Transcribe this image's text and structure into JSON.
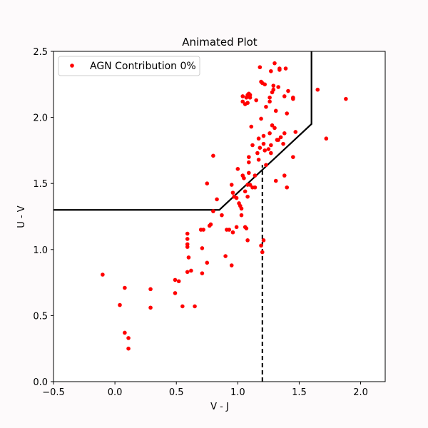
{
  "chart_data": {
    "type": "scatter",
    "title": "Animated Plot",
    "xlabel": "V - J",
    "ylabel": "U - V",
    "xlim": [
      -0.5,
      2.2
    ],
    "ylim": [
      0.0,
      2.5
    ],
    "xticks": [
      -0.5,
      0.0,
      0.5,
      1.0,
      1.5,
      2.0
    ],
    "yticks": [
      0.0,
      0.5,
      1.0,
      1.5,
      2.0,
      2.5
    ],
    "xtick_labels": [
      "−0.5",
      "0.0",
      "0.5",
      "1.0",
      "1.5",
      "2.0"
    ],
    "ytick_labels": [
      "0.0",
      "0.5",
      "1.0",
      "1.5",
      "2.0",
      "2.5"
    ],
    "grid": false,
    "legend": {
      "position": "top-left",
      "entries": [
        "AGN Contribution 0%"
      ]
    },
    "point_color": "#ff0000",
    "series": [
      {
        "name": "AGN Contribution 0%",
        "points": [
          [
            -0.1,
            0.81
          ],
          [
            0.04,
            0.58
          ],
          [
            0.08,
            0.71
          ],
          [
            0.08,
            0.37
          ],
          [
            0.11,
            0.33
          ],
          [
            0.11,
            0.25
          ],
          [
            0.29,
            0.7
          ],
          [
            0.29,
            0.56
          ],
          [
            0.49,
            0.67
          ],
          [
            0.49,
            0.77
          ],
          [
            0.52,
            0.76
          ],
          [
            0.55,
            0.57
          ],
          [
            0.59,
            1.12
          ],
          [
            0.59,
            1.08
          ],
          [
            0.59,
            1.04
          ],
          [
            0.59,
            1.02
          ],
          [
            0.6,
            0.94
          ],
          [
            0.59,
            0.83
          ],
          [
            0.62,
            0.84
          ],
          [
            0.65,
            0.57
          ],
          [
            0.7,
            1.15
          ],
          [
            0.72,
            1.15
          ],
          [
            0.71,
            1.01
          ],
          [
            0.71,
            0.82
          ],
          [
            0.75,
            0.9
          ],
          [
            0.77,
            1.18
          ],
          [
            0.78,
            1.19
          ],
          [
            0.8,
            1.29
          ],
          [
            0.83,
            1.38
          ],
          [
            0.75,
            1.5
          ],
          [
            0.8,
            1.71
          ],
          [
            0.87,
            1.26
          ],
          [
            0.91,
            1.15
          ],
          [
            0.9,
            0.95
          ],
          [
            0.95,
            0.88
          ],
          [
            0.93,
            1.15
          ],
          [
            0.96,
            1.13
          ],
          [
            0.95,
            1.49
          ],
          [
            0.96,
            1.43
          ],
          [
            0.97,
            1.4
          ],
          [
            0.99,
            1.39
          ],
          [
            0.99,
            1.17
          ],
          [
            1.0,
            1.61
          ],
          [
            1.02,
            1.33
          ],
          [
            1.01,
            1.35
          ],
          [
            1.03,
            1.31
          ],
          [
            1.03,
            1.26
          ],
          [
            1.04,
            1.56
          ],
          [
            1.05,
            1.54
          ],
          [
            1.06,
            1.44
          ],
          [
            1.06,
            1.17
          ],
          [
            1.07,
            1.16
          ],
          [
            1.08,
            1.07
          ],
          [
            1.08,
            1.4
          ],
          [
            1.08,
            1.49
          ],
          [
            1.09,
            1.58
          ],
          [
            1.09,
            1.66
          ],
          [
            1.09,
            1.7
          ],
          [
            1.1,
            1.49
          ],
          [
            1.11,
            1.93
          ],
          [
            1.12,
            1.47
          ],
          [
            1.12,
            1.79
          ],
          [
            1.14,
            1.56
          ],
          [
            1.14,
            1.47
          ],
          [
            1.16,
            1.73
          ],
          [
            1.17,
            1.68
          ],
          [
            1.17,
            1.84
          ],
          [
            1.18,
            1.77
          ],
          [
            1.19,
            1.99
          ],
          [
            1.19,
            1.03
          ],
          [
            1.2,
            0.98
          ],
          [
            1.21,
            1.07
          ],
          [
            1.21,
            1.8
          ],
          [
            1.21,
            1.86
          ],
          [
            1.22,
            1.75
          ],
          [
            1.23,
            1.64
          ],
          [
            1.25,
            1.76
          ],
          [
            1.26,
            1.88
          ],
          [
            1.27,
            1.73
          ],
          [
            1.27,
            1.79
          ],
          [
            1.28,
            1.94
          ],
          [
            1.3,
            1.92
          ],
          [
            1.31,
            1.52
          ],
          [
            1.32,
            1.83
          ],
          [
            1.33,
            1.83
          ],
          [
            1.35,
            1.85
          ],
          [
            1.37,
            1.8
          ],
          [
            1.38,
            1.56
          ],
          [
            1.38,
            1.88
          ],
          [
            1.4,
            2.03
          ],
          [
            1.4,
            1.47
          ],
          [
            1.45,
            1.7
          ],
          [
            1.47,
            1.89
          ],
          [
            1.04,
            2.16
          ],
          [
            1.04,
            2.12
          ],
          [
            1.06,
            2.1
          ],
          [
            1.07,
            2.15
          ],
          [
            1.08,
            2.17
          ],
          [
            1.08,
            2.11
          ],
          [
            1.09,
            2.18
          ],
          [
            1.1,
            2.17
          ],
          [
            1.1,
            2.15
          ],
          [
            1.15,
            2.13
          ],
          [
            1.18,
            2.38
          ],
          [
            1.19,
            2.27
          ],
          [
            1.2,
            2.26
          ],
          [
            1.22,
            2.25
          ],
          [
            1.23,
            2.08
          ],
          [
            1.26,
            2.15
          ],
          [
            1.26,
            2.12
          ],
          [
            1.27,
            2.35
          ],
          [
            1.28,
            2.19
          ],
          [
            1.29,
            2.21
          ],
          [
            1.29,
            2.24
          ],
          [
            1.3,
            2.41
          ],
          [
            1.31,
            2.05
          ],
          [
            1.33,
            2.23
          ],
          [
            1.34,
            2.37
          ],
          [
            1.34,
            2.36
          ],
          [
            1.38,
            2.16
          ],
          [
            1.39,
            2.37
          ],
          [
            1.41,
            2.2
          ],
          [
            1.45,
            2.14
          ],
          [
            1.45,
            2.15
          ],
          [
            1.65,
            2.21
          ],
          [
            1.72,
            1.84
          ],
          [
            1.88,
            2.14
          ]
        ]
      }
    ],
    "selection_boundary": [
      [
        -0.5,
        1.3
      ],
      [
        0.85,
        1.3
      ],
      [
        1.6,
        1.95
      ],
      [
        1.6,
        2.5
      ]
    ],
    "dashed_line": [
      [
        1.2,
        0.0
      ],
      [
        1.2,
        1.64
      ]
    ]
  }
}
